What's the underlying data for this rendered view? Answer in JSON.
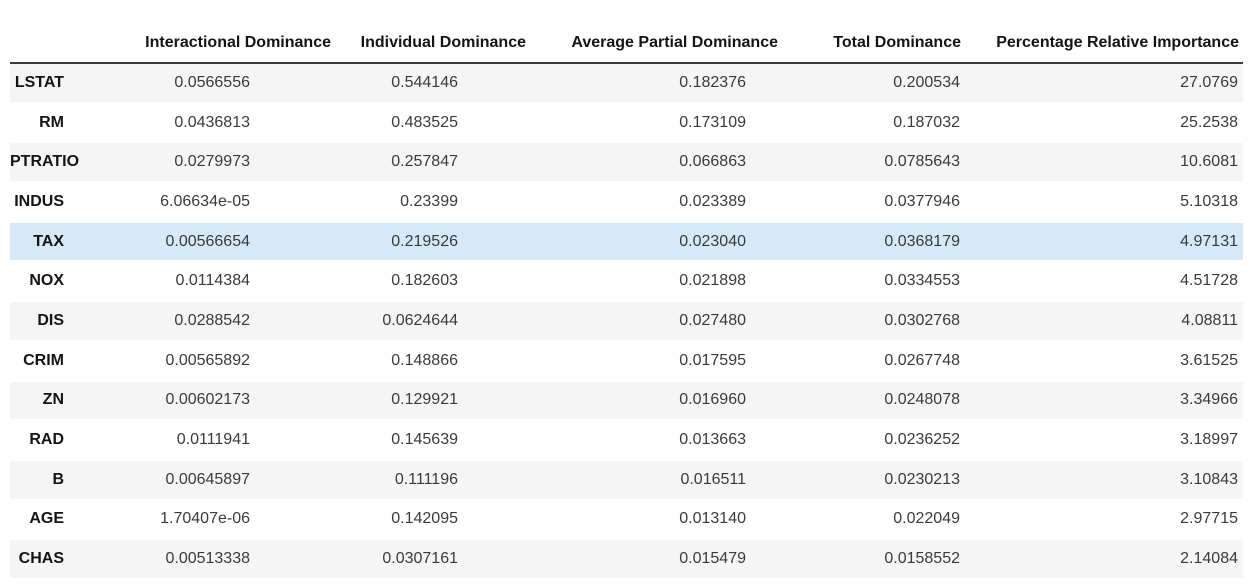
{
  "colors": {
    "highlight_row": "#d6e9f9",
    "stripe_row": "#f5f5f5",
    "header_line": "#3b3b3b",
    "text": "#3a3a3a",
    "bold_text": "#141414"
  },
  "chart_data": {
    "type": "table",
    "title": "",
    "index_label": "",
    "columns": [
      "Interactional Dominance",
      "Individual Dominance",
      "Average Partial Dominance",
      "Total Dominance",
      "Percentage Relative Importance"
    ],
    "index": [
      "LSTAT",
      "RM",
      "PTRATIO",
      "INDUS",
      "TAX",
      "NOX",
      "DIS",
      "CRIM",
      "ZN",
      "RAD",
      "B",
      "AGE",
      "CHAS"
    ],
    "rows": [
      [
        "0.0566556",
        "0.544146",
        "0.182376",
        "0.200534",
        "27.0769"
      ],
      [
        "0.0436813",
        "0.483525",
        "0.173109",
        "0.187032",
        "25.2538"
      ],
      [
        "0.0279973",
        "0.257847",
        "0.066863",
        "0.0785643",
        "10.6081"
      ],
      [
        "6.06634e-05",
        "0.23399",
        "0.023389",
        "0.0377946",
        "5.10318"
      ],
      [
        "0.00566654",
        "0.219526",
        "0.023040",
        "0.0368179",
        "4.97131"
      ],
      [
        "0.0114384",
        "0.182603",
        "0.021898",
        "0.0334553",
        "4.51728"
      ],
      [
        "0.0288542",
        "0.0624644",
        "0.027480",
        "0.0302768",
        "4.08811"
      ],
      [
        "0.00565892",
        "0.148866",
        "0.017595",
        "0.0267748",
        "3.61525"
      ],
      [
        "0.00602173",
        "0.129921",
        "0.016960",
        "0.0248078",
        "3.34966"
      ],
      [
        "0.0111941",
        "0.145639",
        "0.013663",
        "0.0236252",
        "3.18997"
      ],
      [
        "0.00645897",
        "0.111196",
        "0.016511",
        "0.0230213",
        "3.10843"
      ],
      [
        "1.70407e-06",
        "0.142095",
        "0.013140",
        "0.022049",
        "2.97715"
      ],
      [
        "0.00513338",
        "0.0307161",
        "0.015479",
        "0.0158552",
        "2.14084"
      ]
    ],
    "highlighted_row": "TAX",
    "layout_hints": {
      "striping": "alternate rows shaded starting with first data row",
      "alignment": "all values right-aligned, feature labels bold"
    }
  }
}
